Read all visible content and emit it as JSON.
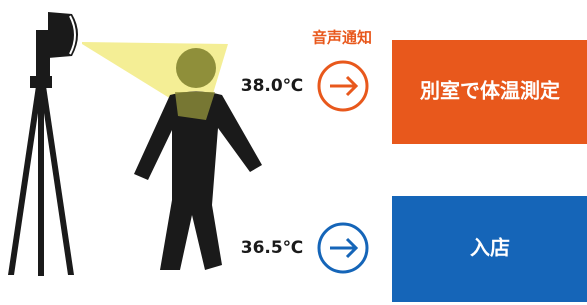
{
  "notice": "音声通知",
  "high": {
    "temperature": "38.0℃",
    "action": "別室で体温測定"
  },
  "normal": {
    "temperature": "36.5℃",
    "action": "入店"
  }
}
